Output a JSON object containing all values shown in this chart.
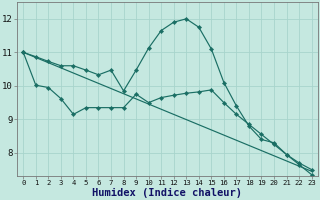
{
  "bg_color": "#c5e8e0",
  "grid_color": "#a8d4cc",
  "line_color": "#1a6e64",
  "xlabel": "Humidex (Indice chaleur)",
  "xlim": [
    -0.5,
    23.5
  ],
  "ylim": [
    7.3,
    12.5
  ],
  "yticks": [
    8,
    9,
    10,
    11,
    12
  ],
  "xticks": [
    0,
    1,
    2,
    3,
    4,
    5,
    6,
    7,
    8,
    9,
    10,
    11,
    12,
    13,
    14,
    15,
    16,
    17,
    18,
    19,
    20,
    21,
    22,
    23
  ],
  "line1_x": [
    0,
    1,
    2,
    3,
    4,
    5,
    6,
    7,
    8,
    9,
    10,
    11,
    12,
    13,
    14,
    15,
    16,
    17,
    18,
    19,
    20,
    21,
    22,
    23
  ],
  "line1_y": [
    11.0,
    10.87,
    10.73,
    10.6,
    10.6,
    10.47,
    10.33,
    10.47,
    9.85,
    10.47,
    11.13,
    11.65,
    11.9,
    12.0,
    11.75,
    11.1,
    10.1,
    9.4,
    8.8,
    8.4,
    8.3,
    7.95,
    7.7,
    7.5
  ],
  "line2_x": [
    0,
    1,
    2,
    3,
    4,
    5,
    6,
    7,
    8,
    9,
    10,
    11,
    12,
    13,
    14,
    15,
    16,
    17,
    18,
    19,
    20,
    21,
    22,
    23
  ],
  "line2_y": [
    11.0,
    10.02,
    9.95,
    9.62,
    9.15,
    9.35,
    9.35,
    9.35,
    9.35,
    9.75,
    9.5,
    9.65,
    9.72,
    9.78,
    9.82,
    9.88,
    9.5,
    9.15,
    8.85,
    8.55,
    8.25,
    7.95,
    7.65,
    7.35
  ],
  "line3_x": [
    0,
    23
  ],
  "line3_y": [
    11.0,
    7.45
  ]
}
